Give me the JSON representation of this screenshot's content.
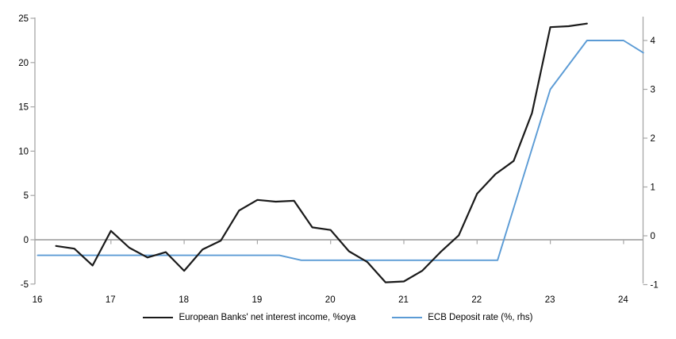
{
  "chart_data": {
    "type": "line",
    "title": "",
    "x_axis": {
      "tick_labels": [
        "16",
        "17",
        "18",
        "19",
        "20",
        "21",
        "22",
        "23",
        "24"
      ],
      "tick_values": [
        16,
        17,
        18,
        19,
        20,
        21,
        22,
        23,
        24
      ],
      "range": [
        16,
        24.3
      ]
    },
    "left_axis": {
      "tick_labels": [
        "-5",
        "0",
        "5",
        "10",
        "15",
        "20",
        "25"
      ],
      "tick_values": [
        -5,
        0,
        5,
        10,
        15,
        20,
        25
      ],
      "range": [
        -5,
        25
      ]
    },
    "right_axis": {
      "tick_labels": [
        "-1",
        "0",
        "1",
        "2",
        "3",
        "4"
      ],
      "tick_values": [
        -1,
        0,
        1,
        2,
        3,
        4
      ],
      "range": [
        -1,
        4.5
      ]
    },
    "grid": "zero-line-only",
    "legend_position": "bottom-center",
    "series": [
      {
        "name": "European Banks' net interest income, %oya",
        "axis": "left",
        "color": "#1a1a1a",
        "x": [
          16.25,
          16.5,
          16.75,
          17.0,
          17.25,
          17.5,
          17.75,
          18.0,
          18.25,
          18.5,
          18.75,
          19.0,
          19.25,
          19.5,
          19.75,
          20.0,
          20.25,
          20.5,
          20.75,
          21.0,
          21.25,
          21.5,
          21.75,
          22.0,
          22.25,
          22.5,
          22.75,
          23.0,
          23.25,
          23.5
        ],
        "values": [
          -0.7,
          -1.0,
          -2.9,
          1.0,
          -0.9,
          -2.0,
          -1.4,
          -3.5,
          -1.1,
          -0.1,
          3.3,
          4.5,
          4.3,
          4.4,
          1.4,
          1.1,
          -1.3,
          -2.5,
          -4.8,
          -4.7,
          -3.5,
          -1.4,
          0.5,
          5.2,
          7.4,
          8.9,
          14.3,
          24.0,
          24.1,
          24.4
        ]
      },
      {
        "name": "ECB Deposit rate (%, rhs)",
        "axis": "right",
        "color": "#5b9bd5",
        "x": [
          16.0,
          19.3,
          19.6,
          22.28,
          23.0,
          23.5,
          24.0,
          24.27
        ],
        "values": [
          -0.4,
          -0.4,
          -0.5,
          -0.5,
          3.0,
          4.0,
          4.0,
          3.75
        ]
      }
    ],
    "colors": {
      "axis": "#a6a6a6",
      "zero_line": "#a6a6a6",
      "background": "#ffffff",
      "text": "#000000"
    }
  }
}
